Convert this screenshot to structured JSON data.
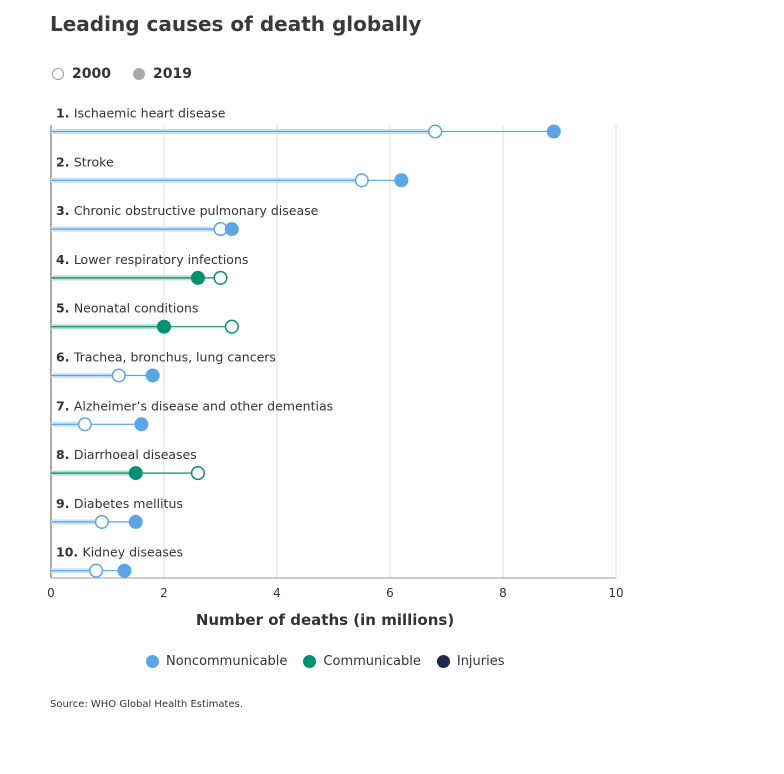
{
  "title": "Leading causes of death globally",
  "year_legend": {
    "open_label": "2000",
    "filled_label": "2019"
  },
  "type_legend": [
    {
      "label": "Noncommunicable",
      "color": "#5aa5e6"
    },
    {
      "label": "Communicable",
      "color": "#00916e"
    },
    {
      "label": "Injuries",
      "color": "#1b2a50"
    }
  ],
  "source": "Source: WHO Global Health Estimates.",
  "chart_data": {
    "type": "dumbbell",
    "xlabel": "Number of deaths (in millions)",
    "xlim": [
      0,
      10
    ],
    "xticks": [
      0,
      2,
      4,
      6,
      8,
      10
    ],
    "grid": true,
    "series": [
      "2000",
      "2019"
    ],
    "colors": {
      "noncommunicable": "#5aa5e6",
      "communicable": "#00916e",
      "injuries": "#1b2a50"
    },
    "rows": [
      {
        "rank": "1.",
        "label": "Ischaemic heart disease",
        "type": "noncommunicable",
        "y2000": 6.8,
        "y2019": 8.9
      },
      {
        "rank": "2.",
        "label": "Stroke",
        "type": "noncommunicable",
        "y2000": 5.5,
        "y2019": 6.2
      },
      {
        "rank": "3.",
        "label": "Chronic obstructive pulmonary disease",
        "type": "noncommunicable",
        "y2000": 3.0,
        "y2019": 3.2
      },
      {
        "rank": "4.",
        "label": "Lower respiratory infections",
        "type": "communicable",
        "y2000": 3.0,
        "y2019": 2.6
      },
      {
        "rank": "5.",
        "label": "Neonatal conditions",
        "type": "communicable",
        "y2000": 3.2,
        "y2019": 2.0
      },
      {
        "rank": "6.",
        "label": "Trachea, bronchus, lung cancers",
        "type": "noncommunicable",
        "y2000": 1.2,
        "y2019": 1.8
      },
      {
        "rank": "7.",
        "label": "Alzheimer’s disease and other dementias",
        "type": "noncommunicable",
        "y2000": 0.6,
        "y2019": 1.6
      },
      {
        "rank": "8.",
        "label": "Diarrhoeal diseases",
        "type": "communicable",
        "y2000": 2.6,
        "y2019": 1.5
      },
      {
        "rank": "9.",
        "label": "Diabetes mellitus",
        "type": "noncommunicable",
        "y2000": 0.9,
        "y2019": 1.5
      },
      {
        "rank": "10.",
        "label": "Kidney diseases",
        "type": "noncommunicable",
        "y2000": 0.8,
        "y2019": 1.3
      }
    ]
  }
}
